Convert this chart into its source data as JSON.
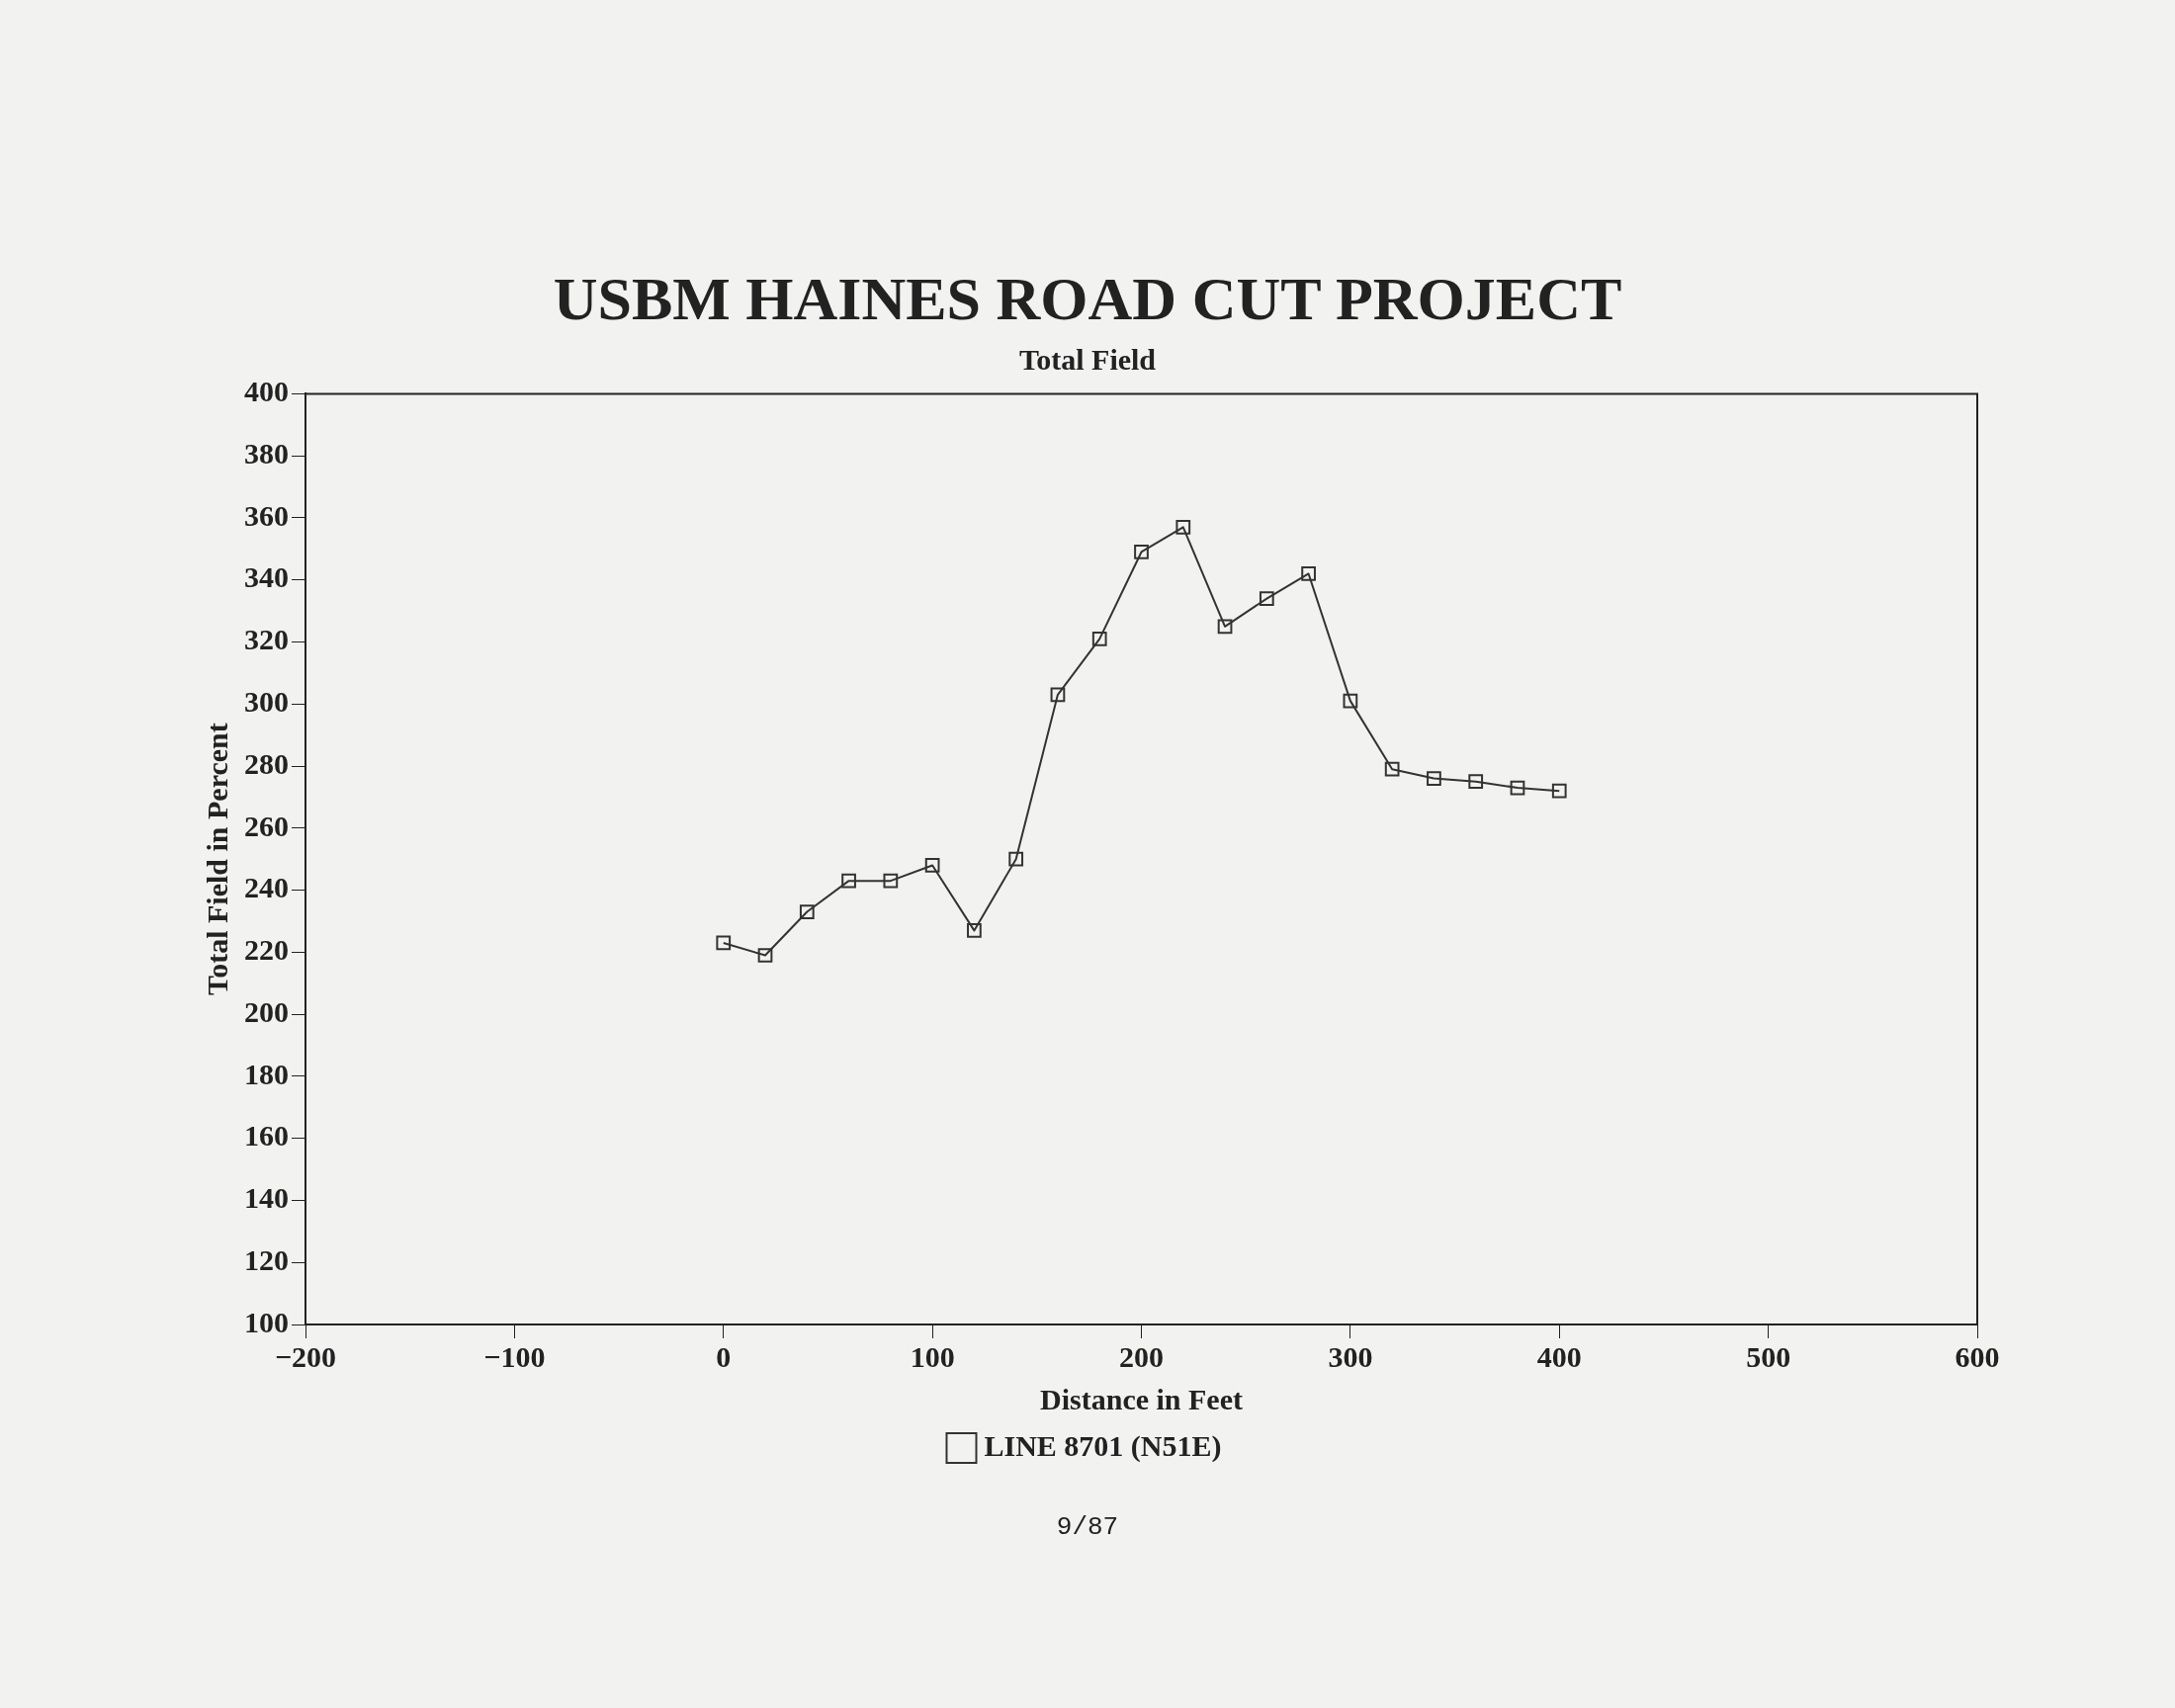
{
  "chart_data": {
    "type": "line",
    "title": "USBM HAINES ROAD CUT PROJECT",
    "subtitle": "Total Field",
    "xlabel": "Distance in Feet",
    "ylabel": "Total Field in Percent",
    "x": [
      0,
      20,
      40,
      60,
      80,
      100,
      120,
      140,
      160,
      180,
      200,
      220,
      240,
      260,
      280,
      300,
      320,
      340,
      360,
      380,
      400
    ],
    "series": [
      {
        "name": "LINE 8701 (N51E)",
        "color": "#333333",
        "values": [
          223,
          219,
          233,
          243,
          243,
          248,
          227,
          250,
          303,
          321,
          349,
          357,
          325,
          334,
          342,
          301,
          279,
          276,
          275,
          273,
          272
        ]
      }
    ],
    "xlim": [
      -200,
      600
    ],
    "xticks": [
      -200,
      -100,
      0,
      100,
      200,
      300,
      400,
      500,
      600
    ],
    "ylim": [
      100,
      400
    ],
    "yticks": [
      100,
      120,
      140,
      160,
      180,
      200,
      220,
      240,
      260,
      280,
      300,
      320,
      340,
      360,
      380,
      400
    ],
    "grid": false,
    "legend": "bottom",
    "marker": "square",
    "line_style": "solid",
    "annotations": [
      "9/87"
    ]
  }
}
